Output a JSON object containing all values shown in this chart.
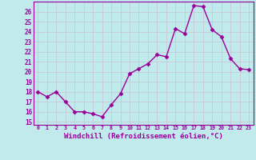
{
  "x": [
    0,
    1,
    2,
    3,
    4,
    5,
    6,
    7,
    8,
    9,
    10,
    11,
    12,
    13,
    14,
    15,
    16,
    17,
    18,
    19,
    20,
    21,
    22,
    23
  ],
  "y": [
    18.0,
    17.5,
    18.0,
    17.0,
    16.0,
    16.0,
    15.8,
    15.5,
    16.7,
    17.8,
    19.8,
    20.3,
    20.8,
    21.7,
    21.5,
    24.3,
    23.8,
    26.6,
    26.5,
    24.2,
    23.5,
    21.3,
    20.3,
    20.2
  ],
  "line_color": "#990099",
  "marker": "D",
  "markersize": 2.5,
  "linewidth": 1,
  "xlabel": "Windchill (Refroidissement éolien,°C)",
  "xlabel_fontsize": 6.5,
  "xtick_labels": [
    "0",
    "1",
    "2",
    "3",
    "4",
    "5",
    "6",
    "7",
    "8",
    "9",
    "10",
    "11",
    "12",
    "13",
    "14",
    "15",
    "16",
    "17",
    "18",
    "19",
    "20",
    "21",
    "22",
    "23"
  ],
  "ytick_values": [
    15,
    16,
    17,
    18,
    19,
    20,
    21,
    22,
    23,
    24,
    25,
    26
  ],
  "ylim": [
    14.7,
    27.0
  ],
  "xlim": [
    -0.5,
    23.5
  ],
  "bg_color": "#c0eaec",
  "grid_color": "#c8c8d8",
  "tick_color": "#990099",
  "label_color": "#990099",
  "axis_color": "#990099",
  "spine_color": "#990099"
}
